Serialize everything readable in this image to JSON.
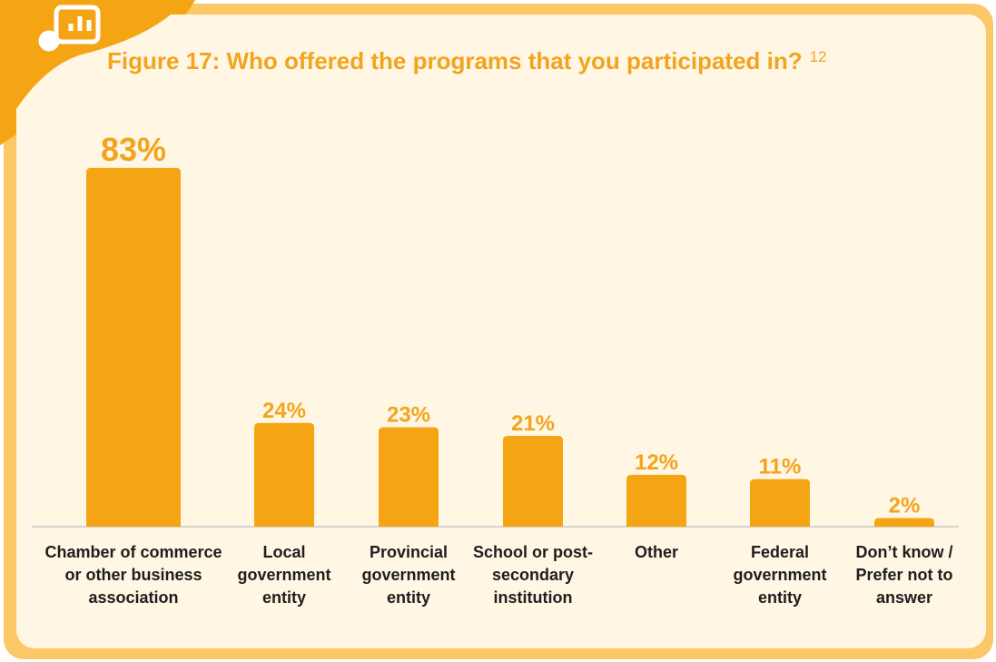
{
  "chart_data": {
    "type": "bar",
    "title": "Figure 17:  Who offered the programs that you participated in?",
    "title_note": "12",
    "categories": [
      "Chamber of commerce or other business association",
      "Local government entity",
      "Provincial government entity",
      "School or post-secondary institution",
      "Other",
      "Federal government entity",
      "Don’t know / Prefer not to answer"
    ],
    "values": [
      83,
      24,
      23,
      21,
      12,
      11,
      2
    ],
    "value_labels": [
      "83%",
      "24%",
      "23%",
      "21%",
      "12%",
      "11%",
      "2%"
    ],
    "color": "#f5a514"
  }
}
